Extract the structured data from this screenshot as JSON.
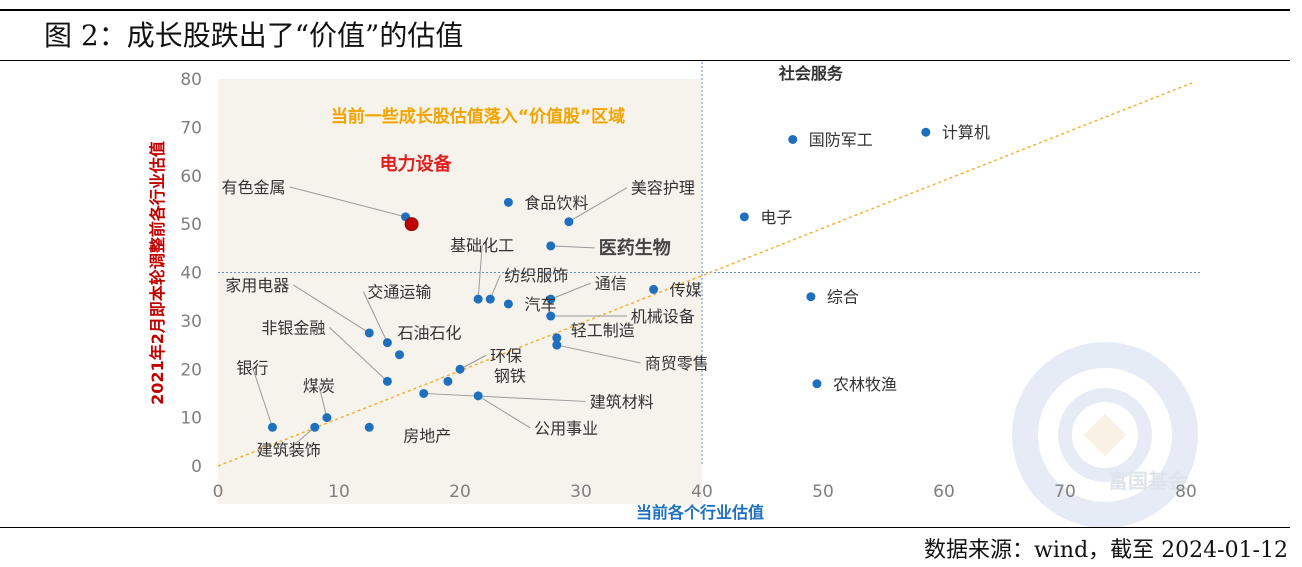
{
  "figure": {
    "title": "图 2：成长股跌出了“价值”的估值",
    "source": "数据来源：wind，截至 2024-01-12"
  },
  "colors": {
    "point": "#1f6fbf",
    "highlight": "#c00000",
    "trend": "#f2b134",
    "region": "#f6f2ec",
    "guide": "#5b8fcb",
    "xlabel": "#1f6fbf",
    "ylabel": "#c00000",
    "annotation": "#f2a400"
  },
  "chart_data": {
    "type": "scatter",
    "xlabel": "当前各个行业估值",
    "ylabel": "2021年2月即本轮调整前各行业估值",
    "xlim": [
      0,
      80
    ],
    "ylim": [
      0,
      80
    ],
    "xticks": [
      0,
      10,
      20,
      30,
      40,
      50,
      60,
      70,
      80
    ],
    "yticks": [
      0,
      10,
      20,
      30,
      40,
      50,
      60,
      70,
      80
    ],
    "guides": {
      "x": 40,
      "y": 40
    },
    "trendline": {
      "from": [
        0,
        0
      ],
      "to": [
        80,
        80
      ]
    },
    "region_annotation": "当前一些成长股估值落入“价值股”区域",
    "points": [
      {
        "name": "社会服务",
        "x": 49,
        "y": 80
      },
      {
        "name": "计算机",
        "x": 58.5,
        "y": 69
      },
      {
        "name": "国防军工",
        "x": 47.5,
        "y": 67.5
      },
      {
        "name": "电子",
        "x": 43.5,
        "y": 51.5
      },
      {
        "name": "综合",
        "x": 49,
        "y": 35
      },
      {
        "name": "农林牧渔",
        "x": 49.5,
        "y": 17
      },
      {
        "name": "传媒",
        "x": 36,
        "y": 36.5
      },
      {
        "name": "食品饮料",
        "x": 24,
        "y": 54.5
      },
      {
        "name": "美容护理",
        "x": 29,
        "y": 50.5
      },
      {
        "name": "有色金属",
        "x": 15.5,
        "y": 51.5
      },
      {
        "name": "电力设备",
        "x": 16,
        "y": 50,
        "highlight": true
      },
      {
        "name": "医药生物",
        "x": 27.5,
        "y": 45.5
      },
      {
        "name": "基础化工",
        "x": 21.5,
        "y": 34.5
      },
      {
        "name": "纺织服饰",
        "x": 22.5,
        "y": 34.5
      },
      {
        "name": "汽车",
        "x": 24,
        "y": 33.5
      },
      {
        "name": "通信",
        "x": 27.5,
        "y": 34.5
      },
      {
        "name": "机械设备",
        "x": 27.5,
        "y": 31
      },
      {
        "name": "轻工制造",
        "x": 28,
        "y": 26.5
      },
      {
        "name": "商贸零售",
        "x": 28,
        "y": 25
      },
      {
        "name": "家用电器",
        "x": 12.5,
        "y": 27.5
      },
      {
        "name": "交通运输",
        "x": 14,
        "y": 25.5
      },
      {
        "name": "石油石化",
        "x": 15,
        "y": 23
      },
      {
        "name": "非银金融",
        "x": 14,
        "y": 17.5
      },
      {
        "name": "环保",
        "x": 20,
        "y": 20
      },
      {
        "name": "钢铁",
        "x": 19,
        "y": 17.5
      },
      {
        "name": "公用事业",
        "x": 21.5,
        "y": 14.5
      },
      {
        "name": "建筑材料",
        "x": 17,
        "y": 15
      },
      {
        "name": "银行",
        "x": 4.5,
        "y": 8
      },
      {
        "name": "煤炭",
        "x": 9,
        "y": 10
      },
      {
        "name": "建筑装饰",
        "x": 8,
        "y": 8
      },
      {
        "name": "房地产",
        "x": 12.5,
        "y": 8
      }
    ]
  }
}
